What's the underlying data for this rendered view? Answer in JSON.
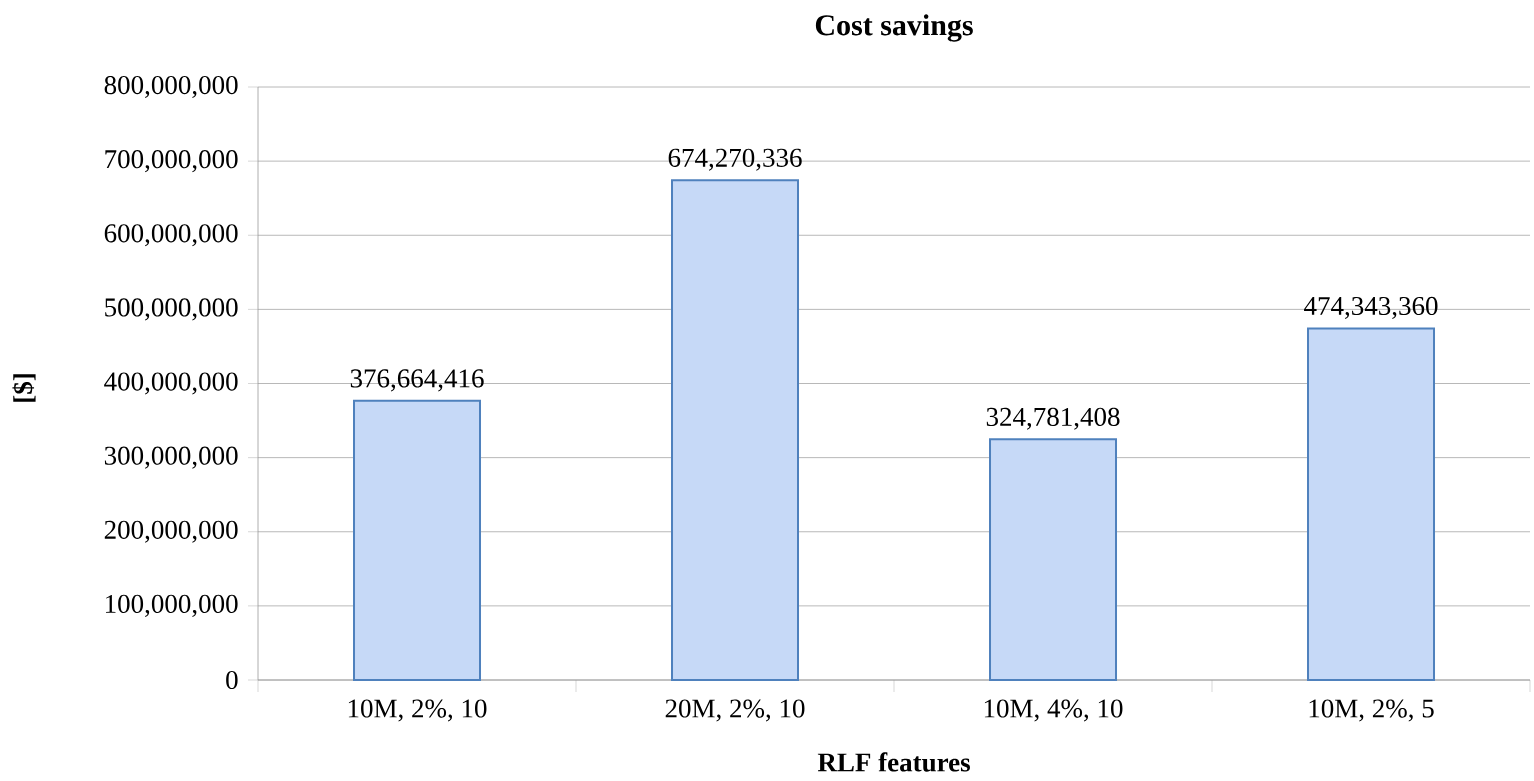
{
  "chart_data": {
    "type": "bar",
    "title": "Cost savings",
    "xlabel": "RLF features",
    "ylabel": "[$]",
    "categories": [
      "10M, 2%, 10",
      "20M, 2%, 10",
      "10M, 4%, 10",
      "10M, 2%,  5"
    ],
    "values": [
      376664416,
      674270336,
      324781408,
      474343360
    ],
    "value_labels": [
      "376,664,416",
      "674,270,336",
      "324,781,408",
      "474,343,360"
    ],
    "color": "#c6d9f7",
    "ylim": [
      0,
      800000000
    ],
    "yticks": [
      {
        "value": 0,
        "label": "0"
      },
      {
        "value": 100000000,
        "label": "100,000,000"
      },
      {
        "value": 200000000,
        "label": "200,000,000"
      },
      {
        "value": 300000000,
        "label": "300,000,000"
      },
      {
        "value": 400000000,
        "label": "400,000,000"
      },
      {
        "value": 500000000,
        "label": "500,000,000"
      },
      {
        "value": 600000000,
        "label": "600,000,000"
      },
      {
        "value": 700000000,
        "label": "700,000,000"
      },
      {
        "value": 800000000,
        "label": "800,000,000"
      }
    ],
    "grid": "y"
  }
}
